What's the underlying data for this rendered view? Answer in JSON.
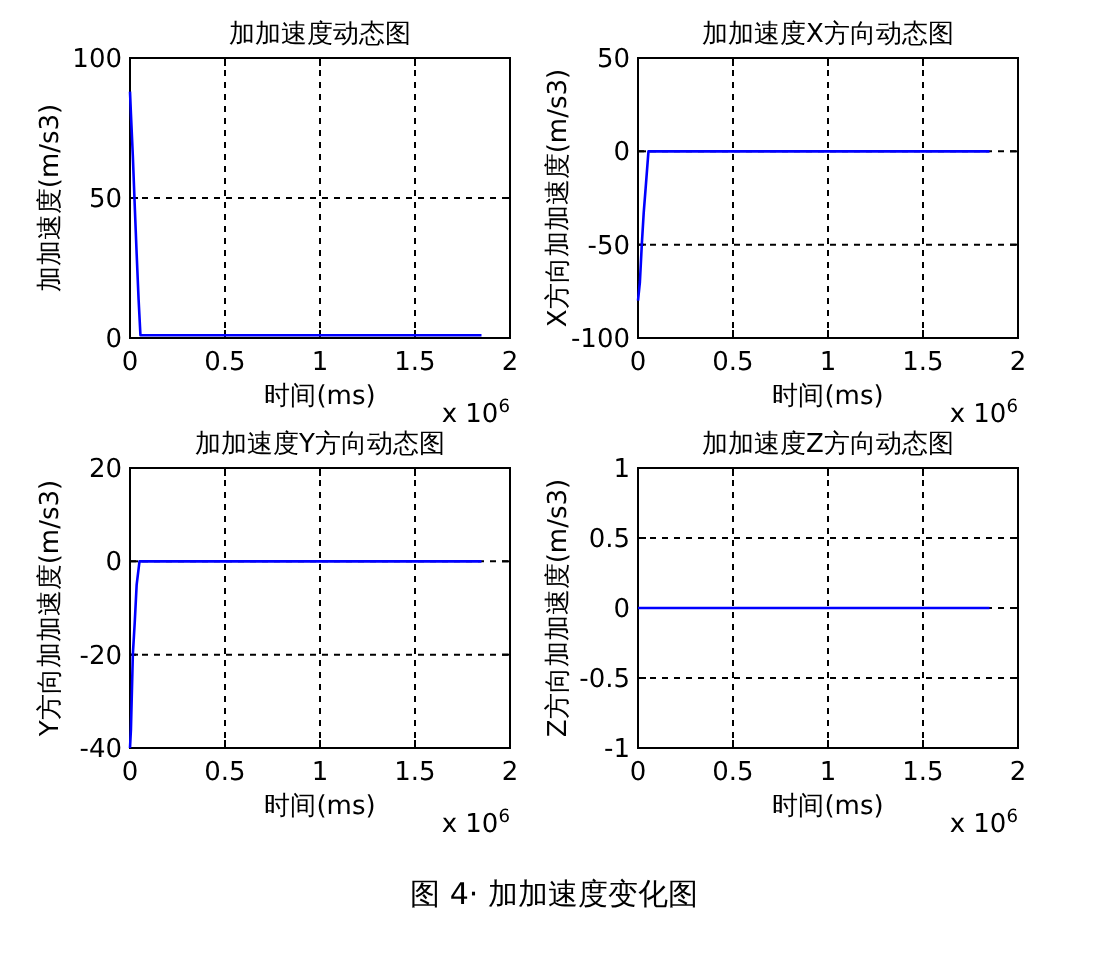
{
  "chart_data": [
    {
      "type": "line",
      "title": "加加速度动态图",
      "xlabel": "时间(ms)",
      "ylabel": "加加速度(m/s3)",
      "xlim": [
        0,
        2
      ],
      "xticks": [
        0,
        0.5,
        1,
        1.5,
        2
      ],
      "ylim": [
        0,
        100
      ],
      "yticks": [
        0,
        50,
        100
      ],
      "grid": true,
      "annotations": [
        "x 10$^{6}$"
      ],
      "series": [
        {
          "color": "#0000ff",
          "x": [
            0,
            0.005,
            0.015,
            0.025,
            0.035,
            0.045,
            0.055,
            0.1,
            1.85
          ],
          "values": [
            88,
            80,
            65,
            47,
            30,
            14,
            1,
            1,
            1
          ]
        }
      ]
    },
    {
      "type": "line",
      "title": "加加速度X方向动态图",
      "xlabel": "时间(ms)",
      "ylabel": "X方向加加速度(m/s3)",
      "xlim": [
        0,
        2
      ],
      "xticks": [
        0,
        0.5,
        1,
        1.5,
        2
      ],
      "ylim": [
        -100,
        50
      ],
      "yticks": [
        -100,
        -50,
        0,
        50
      ],
      "grid": true,
      "annotations": [
        "x 10$^{6}$"
      ],
      "series": [
        {
          "color": "#0000ff",
          "x": [
            0,
            0.01,
            0.02,
            0.03,
            0.04,
            0.055,
            1.85
          ],
          "values": [
            -80,
            -70,
            -50,
            -33,
            -20,
            0,
            0
          ]
        }
      ]
    },
    {
      "type": "line",
      "title": "加加速度Y方向动态图",
      "xlabel": "时间(ms)",
      "ylabel": "Y方向加加速度(m/s3)",
      "xlim": [
        0,
        2
      ],
      "xticks": [
        0,
        0.5,
        1,
        1.5,
        2
      ],
      "ylim": [
        -40,
        20
      ],
      "yticks": [
        -40,
        -20,
        0,
        20
      ],
      "grid": true,
      "annotations": [
        "x 10$^{6}$"
      ],
      "series": [
        {
          "color": "#0000ff",
          "x": [
            0,
            0.005,
            0.015,
            0.025,
            0.035,
            0.05,
            1.85
          ],
          "values": [
            -40,
            -36,
            -20,
            -13,
            -5,
            0,
            0
          ]
        }
      ]
    },
    {
      "type": "line",
      "title": "加加速度Z方向动态图",
      "xlabel": "时间(ms)",
      "ylabel": "Z方向加加速度(m/s3)",
      "xlim": [
        0,
        2
      ],
      "xticks": [
        0,
        0.5,
        1,
        1.5,
        2
      ],
      "ylim": [
        -1,
        1
      ],
      "yticks": [
        -1,
        -0.5,
        0,
        0.5,
        1
      ],
      "grid": true,
      "annotations": [
        "x 10$^{6}$",
        "图 4· 加加速度变化图"
      ],
      "series": [
        {
          "color": "#0000ff",
          "x": [
            0,
            1.85
          ],
          "values": [
            0,
            0
          ]
        }
      ]
    }
  ]
}
